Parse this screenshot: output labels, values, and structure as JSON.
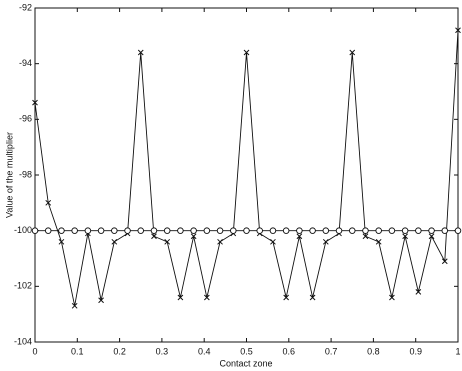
{
  "chart_data": {
    "type": "line",
    "x_label": "Contact zone",
    "y_label": "Value of the multiplier",
    "x": [
      0,
      0.03125,
      0.0625,
      0.09375,
      0.125,
      0.15625,
      0.1875,
      0.21875,
      0.25,
      0.28125,
      0.3125,
      0.34375,
      0.375,
      0.40625,
      0.4375,
      0.46875,
      0.5,
      0.53125,
      0.5625,
      0.59375,
      0.625,
      0.65625,
      0.6875,
      0.71875,
      0.75,
      0.78125,
      0.8125,
      0.84375,
      0.875,
      0.90625,
      0.9375,
      0.96875,
      1
    ],
    "series": [
      {
        "color": "#111111",
        "marker": "x",
        "values": [
          -95.4,
          -99.0,
          -100.4,
          -102.7,
          -100.1,
          -102.5,
          -100.4,
          -100.1,
          -93.6,
          -100.2,
          -100.4,
          -102.4,
          -100.2,
          -102.4,
          -100.4,
          -100.1,
          -93.6,
          -100.1,
          -100.4,
          -102.4,
          -100.2,
          -102.4,
          -100.4,
          -100.1,
          -93.6,
          -100.2,
          -100.4,
          -102.4,
          -100.2,
          -102.2,
          -100.2,
          -101.1,
          -92.8
        ]
      },
      {
        "color": "#111111",
        "marker": "o",
        "values": [
          -100,
          -100,
          -100,
          -100,
          -100,
          -100,
          -100,
          -100,
          -100,
          -100,
          -100,
          -100,
          -100,
          -100,
          -100,
          -100,
          -100,
          -100,
          -100,
          -100,
          -100,
          -100,
          -100,
          -100,
          -100,
          -100,
          -100,
          -100,
          -100,
          -100,
          -100,
          -100,
          -100
        ]
      }
    ],
    "xlim": [
      0,
      1
    ],
    "xticks": [
      0,
      0.1,
      0.2,
      0.3,
      0.4,
      0.5,
      0.6,
      0.7,
      0.8,
      0.9,
      1
    ],
    "ylim": [
      -104,
      -92
    ],
    "yticks": [
      -104,
      -102,
      -100,
      -98,
      -96,
      -94,
      -92
    ]
  }
}
